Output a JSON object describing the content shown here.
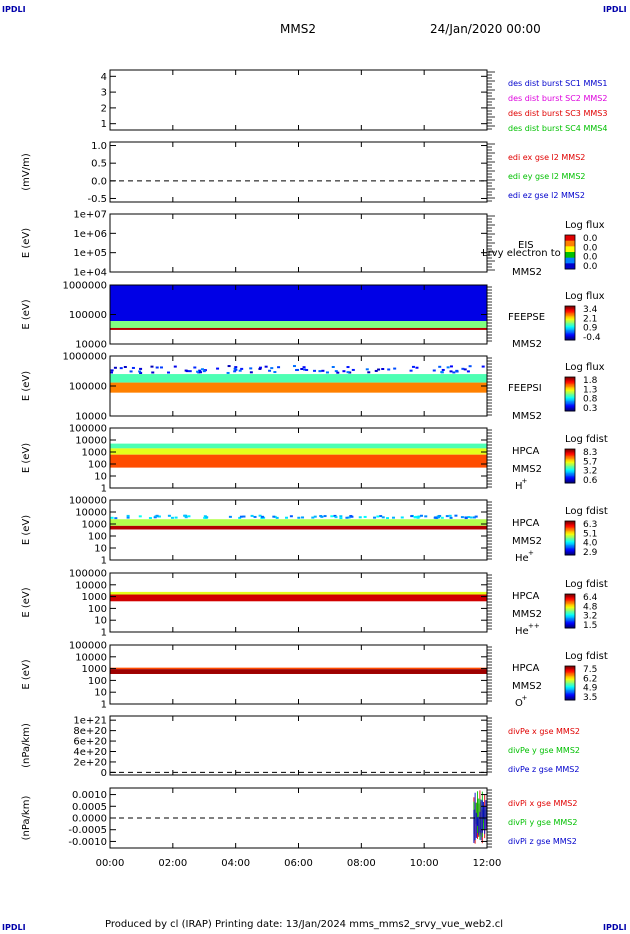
{
  "corners": {
    "tl": "IPDLI",
    "tr": "IPDLI",
    "bl": "IPDLI",
    "br": "IPDLI"
  },
  "header": {
    "spacecraft": "MMS2",
    "date": "24/Jan/2020 00:00"
  },
  "footer": {
    "text": "Produced by cl (IRAP)   Printing date: 13/Jan/2024   mms_mms2_srvy_vue_web2.cl"
  },
  "colors": {
    "red": "#e00000",
    "green": "#00c000",
    "blue": "#0000cc",
    "magenta": "#dd00dd"
  },
  "chart_data": [
    {
      "type": "line",
      "ylabel": "",
      "yticks": [
        "1",
        "2",
        "3",
        "4"
      ],
      "ylim": [
        0.6,
        4.4
      ],
      "x": [
        "00:00",
        "12:00"
      ],
      "legend": [
        {
          "name": "des dist burst SC1 MMS1",
          "color": "#0000cc"
        },
        {
          "name": "des dist burst SC2 MMS2",
          "color": "#dd00dd"
        },
        {
          "name": "des dist burst SC3 MMS3",
          "color": "#e00000"
        },
        {
          "name": "des dist burst SC4 MMS4",
          "color": "#00c000"
        }
      ]
    },
    {
      "type": "line",
      "ylabel": "(mV/m)",
      "yticks": [
        "1.0",
        "0.5",
        "0.0",
        "-0.5"
      ],
      "ylim": [
        -0.6,
        1.1
      ],
      "zero_line": 0,
      "legend": [
        {
          "name": "edi ex gse l2 MMS2",
          "color": "#e00000"
        },
        {
          "name": "edi ey gse l2 MMS2",
          "color": "#00c000"
        },
        {
          "name": "edi ez gse l2 MMS2",
          "color": "#0000cc"
        }
      ]
    },
    {
      "type": "heatmap",
      "ylabel": "E (eV)",
      "yscale": "log",
      "yticks": [
        "1e+07",
        "1e+06",
        "1e+05",
        "1e+04"
      ],
      "ylim": [
        10000.0,
        10000000.0
      ],
      "instrument": "EIS",
      "instrument2": "MMS2",
      "note": "Lrvy electron to",
      "colorbar_title": "Log flux",
      "colorbar_ticks": [
        "0.0",
        "0.0",
        "0.0",
        "0.0"
      ],
      "empty": true
    },
    {
      "type": "heatmap",
      "ylabel": "E (eV)",
      "yscale": "log",
      "yticks": [
        "1000000",
        "100000",
        "10000"
      ],
      "ylim": [
        10000.0,
        1000000.0
      ],
      "instrument": "FEEPSE",
      "instrument2": "MMS2",
      "colorbar_title": "Log flux",
      "colorbar_ticks": [
        "3.4",
        "2.1",
        "0.9",
        "-0.4"
      ],
      "bands": [
        {
          "emin": 60000,
          "emax": 1000000,
          "level": 0.1
        },
        {
          "emin": 35000,
          "emax": 60000,
          "level": 0.5
        },
        {
          "emin": 30000,
          "emax": 35000,
          "level": 0.95
        }
      ]
    },
    {
      "type": "heatmap",
      "ylabel": "E (eV)",
      "yscale": "log",
      "yticks": [
        "1000000",
        "100000",
        "10000"
      ],
      "ylim": [
        10000.0,
        1000000.0
      ],
      "instrument": "FEEPSI",
      "instrument2": "MMS2",
      "colorbar_title": "Log flux",
      "colorbar_ticks": [
        "1.8",
        "1.3",
        "0.8",
        "0.3"
      ],
      "bands": [
        {
          "emin": 250000,
          "emax": 500000,
          "level": 0.15,
          "sparse": true
        },
        {
          "emin": 130000,
          "emax": 250000,
          "level": 0.45
        },
        {
          "emin": 60000,
          "emax": 130000,
          "level": 0.75
        }
      ]
    },
    {
      "type": "heatmap",
      "ylabel": "E (eV)",
      "yscale": "log",
      "yticks": [
        "100000",
        "10000",
        "1000",
        "100",
        "10",
        "1"
      ],
      "ylim": [
        1,
        100000.0
      ],
      "instrument": "HPCA",
      "instrument2": "MMS2",
      "species": "H",
      "species_sup": "+",
      "colorbar_title": "Log fdist",
      "colorbar_ticks": [
        "8.3",
        "5.7",
        "3.2",
        "0.6"
      ],
      "bands": [
        {
          "emin": 2000,
          "emax": 5000,
          "level": 0.45
        },
        {
          "emin": 600,
          "emax": 2000,
          "level": 0.6
        },
        {
          "emin": 50,
          "emax": 600,
          "level": 0.8
        }
      ]
    },
    {
      "type": "heatmap",
      "ylabel": "E (eV)",
      "yscale": "log",
      "yticks": [
        "100000",
        "10000",
        "1000",
        "100",
        "10",
        "1"
      ],
      "ylim": [
        1,
        100000.0
      ],
      "instrument": "HPCA",
      "instrument2": "MMS2",
      "species": "He",
      "species_sup": "+",
      "colorbar_title": "Log fdist",
      "colorbar_ticks": [
        "6.3",
        "5.1",
        "4.0",
        "2.9"
      ],
      "bands": [
        {
          "emin": 2500,
          "emax": 6000,
          "level": 0.3,
          "sparse": true
        },
        {
          "emin": 700,
          "emax": 2500,
          "level": 0.55
        },
        {
          "emin": 350,
          "emax": 700,
          "level": 0.95
        }
      ]
    },
    {
      "type": "heatmap",
      "ylabel": "E (eV)",
      "yscale": "log",
      "yticks": [
        "100000",
        "10000",
        "1000",
        "100",
        "10",
        "1"
      ],
      "ylim": [
        1,
        100000.0
      ],
      "instrument": "HPCA",
      "instrument2": "MMS2",
      "species": "He",
      "species_sup": "++",
      "colorbar_title": "Log fdist",
      "colorbar_ticks": [
        "6.4",
        "4.8",
        "3.2",
        "1.5"
      ],
      "bands": [
        {
          "emin": 1500,
          "emax": 2500,
          "level": 0.6
        },
        {
          "emin": 400,
          "emax": 1500,
          "level": 0.92
        }
      ]
    },
    {
      "type": "heatmap",
      "ylabel": "E (eV)",
      "yscale": "log",
      "yticks": [
        "100000",
        "10000",
        "1000",
        "100",
        "10",
        "1"
      ],
      "ylim": [
        1,
        100000.0
      ],
      "instrument": "HPCA",
      "instrument2": "MMS2",
      "species": "O",
      "species_sup": "+",
      "colorbar_title": "Log fdist",
      "colorbar_ticks": [
        "7.5",
        "6.2",
        "4.9",
        "3.5"
      ],
      "bands": [
        {
          "emin": 900,
          "emax": 1200,
          "level": 0.8
        },
        {
          "emin": 350,
          "emax": 900,
          "level": 0.97
        }
      ]
    },
    {
      "type": "line",
      "ylabel": "(nPa/km)",
      "yticks": [
        "1e+21",
        "8e+20",
        "6e+20",
        "4e+20",
        "2e+20",
        "0"
      ],
      "ylim": [
        -5e+19,
        1.08e+21
      ],
      "zero_line": 0,
      "legend": [
        {
          "name": "divPe x gse MMS2",
          "color": "#e00000"
        },
        {
          "name": "divPe y gse MMS2",
          "color": "#00c000"
        },
        {
          "name": "divPe z gse MMS2",
          "color": "#0000cc"
        }
      ]
    },
    {
      "type": "line",
      "ylabel": "(nPa/km)",
      "yticks": [
        "0.0010",
        "0.0005",
        "0.0000",
        "-0.0005",
        "-0.0010"
      ],
      "ylim": [
        -0.00128,
        0.00128
      ],
      "zero_line": 0,
      "legend": [
        {
          "name": "divPi x gse MMS2",
          "color": "#e00000"
        },
        {
          "name": "divPi y gse MMS2",
          "color": "#00c000"
        },
        {
          "name": "divPi z gse MMS2",
          "color": "#0000cc"
        }
      ],
      "burst": {
        "t_start": "11:35",
        "t_end": "12:00",
        "vmin": -0.0011,
        "vmax": 0.0012
      }
    }
  ],
  "xaxis": {
    "ticks": [
      "00:00",
      "02:00",
      "04:00",
      "06:00",
      "08:00",
      "10:00",
      "12:00"
    ],
    "tmin_h": 0,
    "tmax_h": 12
  }
}
